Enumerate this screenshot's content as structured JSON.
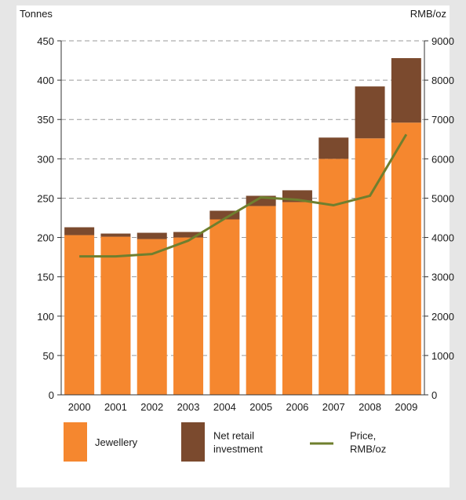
{
  "chart_data": {
    "type": "bar",
    "stacked": true,
    "categories": [
      "2000",
      "2001",
      "2002",
      "2003",
      "2004",
      "2005",
      "2006",
      "2007",
      "2008",
      "2009"
    ],
    "series": [
      {
        "name": "Jewellery",
        "color": "#f5872f",
        "values": [
          203,
          201,
          198,
          200,
          223,
          240,
          245,
          300,
          326,
          346
        ]
      },
      {
        "name": "Net retail investment",
        "color": "#7b4a2e",
        "values": [
          10,
          4,
          8,
          7,
          11,
          13,
          15,
          27,
          66,
          82
        ]
      }
    ],
    "line_series": {
      "name": "Price, RMB/oz",
      "color": "#6f7f2e",
      "axis": "right",
      "values": [
        3520,
        3520,
        3580,
        3920,
        4480,
        5020,
        4960,
        4820,
        5060,
        6620
      ]
    },
    "left_axis": {
      "label": "Tonnes",
      "ylim": [
        0,
        450
      ],
      "ticks": [
        "0",
        "50",
        "100",
        "150",
        "200",
        "250",
        "300",
        "350",
        "400",
        "450"
      ]
    },
    "right_axis": {
      "label": "RMB/oz",
      "ylim": [
        0,
        9000
      ],
      "ticks": [
        "0",
        "1000",
        "2000",
        "3000",
        "4000",
        "5000",
        "6000",
        "7000",
        "8000",
        "9000"
      ]
    },
    "grid": true,
    "legend_position": "bottom",
    "legend": [
      {
        "label_lines": [
          "Jewellery"
        ],
        "kind": "swatch",
        "color": "#f5872f"
      },
      {
        "label_lines": [
          "Net retail",
          "investment"
        ],
        "kind": "swatch",
        "color": "#7b4a2e"
      },
      {
        "label_lines": [
          "Price,",
          "RMB/oz"
        ],
        "kind": "line",
        "color": "#6f7f2e"
      }
    ]
  }
}
